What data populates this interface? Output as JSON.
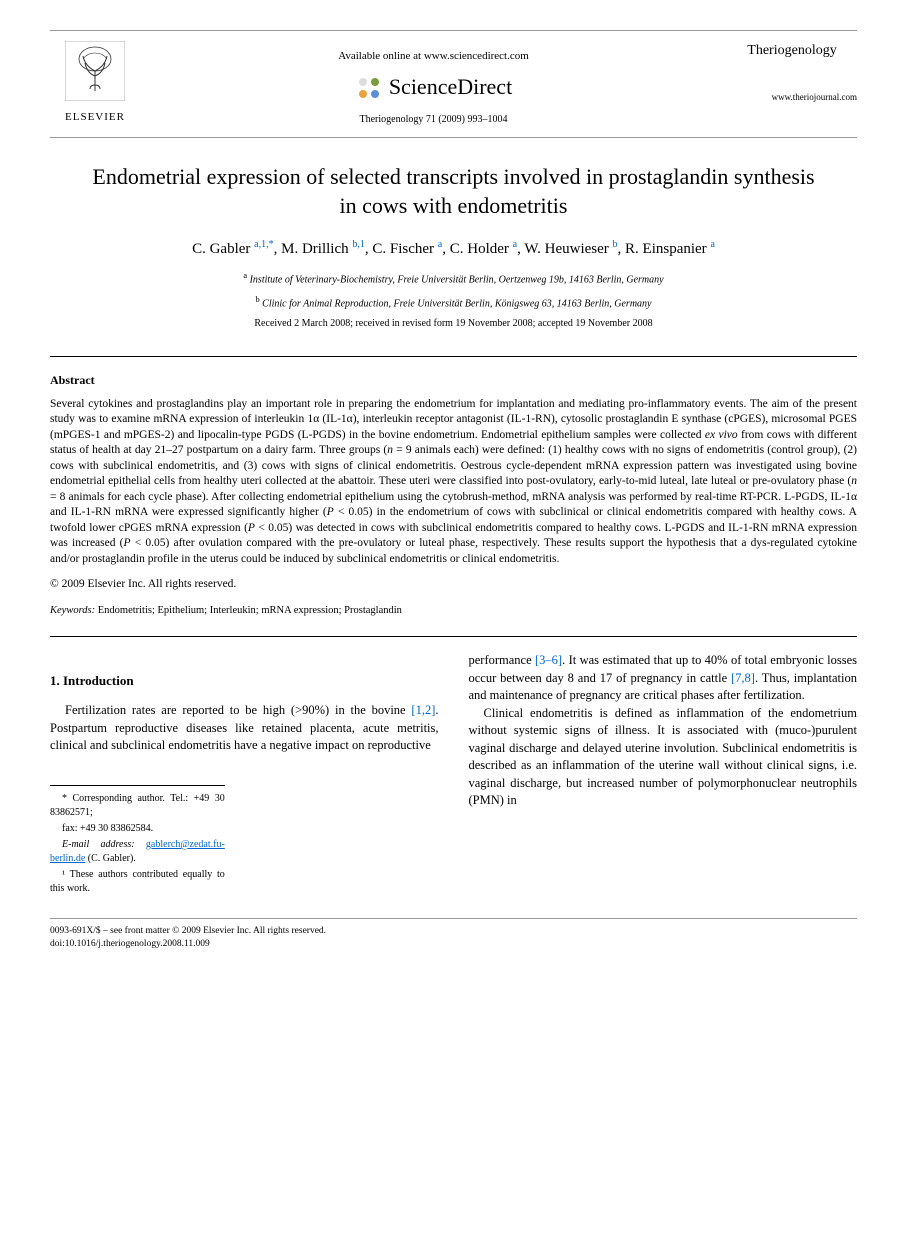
{
  "header": {
    "publisher_name": "ELSEVIER",
    "available_text": "Available online at www.sciencedirect.com",
    "sd_brand": "ScienceDirect",
    "citation": "Theriogenology 71 (2009) 993–1004",
    "journal_name": "Theriogenology",
    "journal_url": "www.theriojournal.com"
  },
  "article": {
    "title": "Endometrial expression of selected transcripts involved in prostaglandin synthesis in cows with endometritis",
    "authors_html": "C. Gabler <sup class='author-link'>a,1,*</sup>, M. Drillich <sup class='author-link'>b,1</sup>, C. Fischer <sup class='author-link'>a</sup>, C. Holder <sup class='author-link'>a</sup>, W. Heuwieser <sup class='author-link'>b</sup>, R. Einspanier <sup class='author-link'>a</sup>",
    "affil_a": "Institute of Veterinary-Biochemistry, Freie Universität Berlin, Oertzenweg 19b, 14163 Berlin, Germany",
    "affil_b": "Clinic for Animal Reproduction, Freie Universität Berlin, Königsweg 63, 14163 Berlin, Germany",
    "dates": "Received 2 March 2008; received in revised form 19 November 2008; accepted 19 November 2008"
  },
  "abstract": {
    "heading": "Abstract",
    "text": "Several cytokines and prostaglandins play an important role in preparing the endometrium for implantation and mediating pro-inflammatory events. The aim of the present study was to examine mRNA expression of interleukin 1α (IL-1α), interleukin receptor antagonist (IL-1-RN), cytosolic prostaglandin E synthase (cPGES), microsomal PGES (mPGES-1 and mPGES-2) and lipocalin-type PGDS (L-PGDS) in the bovine endometrium. Endometrial epithelium samples were collected ex vivo from cows with different status of health at day 21–27 postpartum on a dairy farm. Three groups (n = 9 animals each) were defined: (1) healthy cows with no signs of endometritis (control group), (2) cows with subclinical endometritis, and (3) cows with signs of clinical endometritis. Oestrous cycle-dependent mRNA expression pattern was investigated using bovine endometrial epithelial cells from healthy uteri collected at the abattoir. These uteri were classified into post-ovulatory, early-to-mid luteal, late luteal or pre-ovulatory phase (n = 8 animals for each cycle phase). After collecting endometrial epithelium using the cytobrush-method, mRNA analysis was performed by real-time RT-PCR. L-PGDS, IL-1α and IL-1-RN mRNA were expressed significantly higher (P < 0.05) in the endometrium of cows with subclinical or clinical endometritis compared with healthy cows. A twofold lower cPGES mRNA expression (P < 0.05) was detected in cows with subclinical endometritis compared to healthy cows. L-PGDS and IL-1-RN mRNA expression was increased (P < 0.05) after ovulation compared with the pre-ovulatory or luteal phase, respectively. These results support the hypothesis that a dys-regulated cytokine and/or prostaglandin profile in the uterus could be induced by subclinical endometritis or clinical endometritis.",
    "copyright": "© 2009 Elsevier Inc. All rights reserved.",
    "keywords_label": "Keywords:",
    "keywords": "Endometritis; Epithelium; Interleukin; mRNA expression; Prostaglandin"
  },
  "intro": {
    "heading": "1. Introduction",
    "col1_p1": "Fertilization rates are reported to be high (>90%) in the bovine [1,2]. Postpartum reproductive diseases like retained placenta, acute metritis, clinical and subclinical endometritis have a negative impact on reproductive",
    "col2_p1": "performance [3–6]. It was estimated that up to 40% of total embryonic losses occur between day 8 and 17 of pregnancy in cattle [7,8]. Thus, implantation and maintenance of pregnancy are critical phases after fertilization.",
    "col2_p2": "Clinical endometritis is defined as inflammation of the endometrium without systemic signs of illness. It is associated with (muco-)purulent vaginal discharge and delayed uterine involution. Subclinical endometritis is described as an inflammation of the uterine wall without clinical signs, i.e. vaginal discharge, but increased number of polymorphonuclear neutrophils (PMN) in"
  },
  "footnotes": {
    "corr": "* Corresponding author. Tel.: +49 30 83862571;",
    "fax": "fax: +49 30 83862584.",
    "email_label": "E-mail address:",
    "email": "gablerch@zedat.fu-berlin.de",
    "email_suffix": "(C. Gabler).",
    "note1": "¹ These authors contributed equally to this work."
  },
  "footer": {
    "left": "0093-691X/$ – see front matter © 2009 Elsevier Inc. All rights reserved.",
    "doi": "doi:10.1016/j.theriogenology.2008.11.009"
  },
  "colors": {
    "link": "#0066cc",
    "text": "#000000",
    "rule": "#999999"
  }
}
